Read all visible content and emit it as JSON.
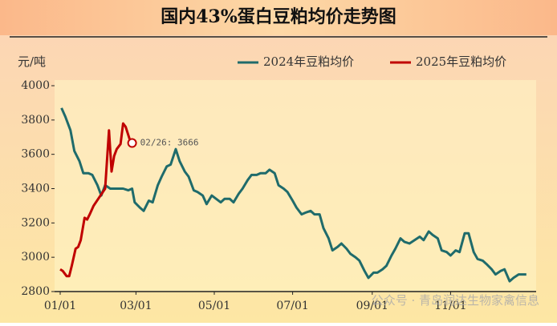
{
  "chart_data": {
    "type": "line",
    "title": "国内43%蛋白豆粕均价走势图",
    "y_label": "元/吨",
    "ylim": [
      2800,
      4000
    ],
    "yticks": [
      2800,
      3000,
      3200,
      3400,
      3600,
      3800,
      4000
    ],
    "xticks": [
      "01/01",
      "03/01",
      "05/01",
      "07/01",
      "09/01",
      "11/01"
    ],
    "legend": "top-right",
    "grid": false,
    "annotation": "02/26: 3666",
    "watermark": "公众号 · 青岛润达生物家禽信息",
    "series": [
      {
        "name": "2024年豆粕均价",
        "color": "#1f6b6b",
        "x": [
          "01/02",
          "01/05",
          "01/09",
          "01/12",
          "01/16",
          "01/19",
          "01/23",
          "01/26",
          "01/30",
          "02/02",
          "02/05",
          "02/09",
          "02/19",
          "02/23",
          "02/26",
          "02/28",
          "03/04",
          "03/07",
          "03/11",
          "03/14",
          "03/18",
          "03/21",
          "03/25",
          "03/28",
          "04/01",
          "04/04",
          "04/08",
          "04/11",
          "04/15",
          "04/18",
          "04/22",
          "04/25",
          "04/29",
          "05/06",
          "05/09",
          "05/13",
          "05/16",
          "05/20",
          "05/23",
          "05/27",
          "05/30",
          "06/03",
          "06/06",
          "06/10",
          "06/13",
          "06/17",
          "06/20",
          "06/24",
          "06/27",
          "07/01",
          "07/04",
          "07/08",
          "07/11",
          "07/15",
          "07/18",
          "07/22",
          "07/25",
          "07/29",
          "08/01",
          "08/05",
          "08/08",
          "08/12",
          "08/15",
          "08/19",
          "08/22",
          "08/26",
          "08/29",
          "09/02",
          "09/05",
          "09/09",
          "09/12",
          "09/16",
          "09/19",
          "09/23",
          "09/26",
          "09/30",
          "10/08",
          "10/11",
          "10/15",
          "10/18",
          "10/22",
          "10/25",
          "10/29",
          "11/01",
          "11/05",
          "11/08",
          "11/12",
          "11/15",
          "11/19",
          "11/22",
          "11/26",
          "11/29",
          "12/03",
          "12/06",
          "12/10",
          "12/13",
          "12/17",
          "12/20",
          "12/24",
          "12/27",
          "12/30"
        ],
        "values": [
          3870,
          3820,
          3740,
          3620,
          3560,
          3490,
          3490,
          3480,
          3420,
          3360,
          3420,
          3400,
          3400,
          3390,
          3400,
          3320,
          3290,
          3270,
          3330,
          3320,
          3420,
          3470,
          3530,
          3540,
          3630,
          3560,
          3500,
          3470,
          3390,
          3380,
          3360,
          3310,
          3360,
          3320,
          3340,
          3340,
          3320,
          3370,
          3400,
          3450,
          3480,
          3480,
          3490,
          3490,
          3510,
          3490,
          3420,
          3400,
          3380,
          3330,
          3290,
          3250,
          3260,
          3270,
          3250,
          3250,
          3170,
          3110,
          3040,
          3060,
          3080,
          3050,
          3020,
          3000,
          2980,
          2920,
          2880,
          2910,
          2910,
          2930,
          2950,
          3010,
          3050,
          3110,
          3090,
          3080,
          3120,
          3100,
          3150,
          3130,
          3110,
          3040,
          3030,
          3010,
          3040,
          3030,
          3140,
          3140,
          3030,
          2990,
          2980,
          2960,
          2930,
          2900,
          2920,
          2930,
          2860,
          2880,
          2900,
          2900,
          2900
        ]
      },
      {
        "name": "2025年豆粕均价",
        "color": "#c00000",
        "x": [
          "01/01",
          "01/03",
          "01/06",
          "01/08",
          "01/10",
          "01/13",
          "01/15",
          "01/17",
          "01/20",
          "01/22",
          "01/24",
          "01/27",
          "02/05",
          "02/08",
          "02/10",
          "02/12",
          "02/14",
          "02/17",
          "02/19",
          "02/21",
          "02/24",
          "02/26"
        ],
        "values": [
          2930,
          2920,
          2890,
          2890,
          2950,
          3050,
          3060,
          3100,
          3230,
          3220,
          3250,
          3300,
          3400,
          3740,
          3500,
          3590,
          3630,
          3660,
          3780,
          3760,
          3690,
          3666
        ]
      }
    ]
  }
}
